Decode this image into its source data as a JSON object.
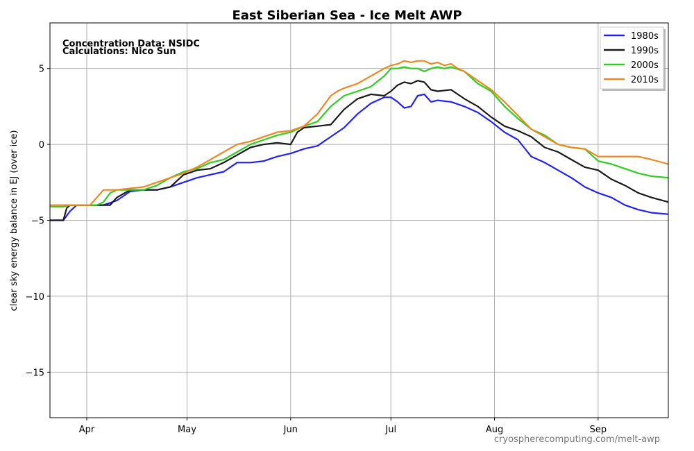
{
  "chart_data": {
    "type": "line",
    "title": "East Siberian Sea - Ice Melt AWP",
    "xlabel": "",
    "ylabel": "clear sky energy balance in EJ (over ice)",
    "annotations": [
      "Concentration Data: NSIDC",
      "Calculations: Nico Sun"
    ],
    "watermark": "cryospherecomputing.com/melt-awp",
    "x_unit": "day of year",
    "xlim": [
      80,
      265
    ],
    "ylim": [
      -18,
      8
    ],
    "x_ticks": [
      {
        "label": "Apr",
        "value": 91
      },
      {
        "label": "May",
        "value": 121
      },
      {
        "label": "Jun",
        "value": 152
      },
      {
        "label": "Jul",
        "value": 182
      },
      {
        "label": "Aug",
        "value": 213
      },
      {
        "label": "Sep",
        "value": 244
      }
    ],
    "y_ticks": [
      5,
      0,
      -5,
      -10,
      -15
    ],
    "y_tick_labels": [
      "5",
      "0",
      "−5",
      "−10",
      "−15"
    ],
    "grid": true,
    "legend_position": "top-right",
    "series": [
      {
        "name": "1980s",
        "color": "#2222ee",
        "x": [
          80,
          84,
          86,
          88,
          90,
          92,
          96,
          100,
          104,
          108,
          112,
          116,
          120,
          124,
          128,
          132,
          136,
          140,
          144,
          148,
          152,
          156,
          160,
          164,
          168,
          172,
          176,
          180,
          182,
          184,
          186,
          188,
          190,
          192,
          194,
          196,
          200,
          204,
          208,
          212,
          216,
          220,
          224,
          228,
          232,
          236,
          240,
          244,
          248,
          252,
          256,
          260,
          265
        ],
        "y": [
          -5,
          -5,
          -4.4,
          -4,
          -4,
          -4,
          -4,
          -3.7,
          -3.1,
          -3,
          -3,
          -2.8,
          -2.5,
          -2.2,
          -2,
          -1.8,
          -1.2,
          -1.2,
          -1.1,
          -0.8,
          -0.6,
          -0.3,
          -0.1,
          0.5,
          1.1,
          2,
          2.7,
          3.1,
          3.1,
          2.8,
          2.4,
          2.5,
          3.2,
          3.3,
          2.8,
          2.9,
          2.8,
          2.5,
          2.1,
          1.5,
          0.8,
          0.3,
          -0.8,
          -1.2,
          -1.7,
          -2.2,
          -2.8,
          -3.2,
          -3.5,
          -4.0,
          -4.3,
          -4.5,
          -4.6
        ]
      },
      {
        "name": "1990s",
        "color": "#1a1a1a",
        "x": [
          80,
          84,
          85,
          86,
          90,
          94,
          98,
          100,
          104,
          108,
          112,
          116,
          120,
          124,
          128,
          132,
          136,
          140,
          144,
          148,
          152,
          154,
          156,
          160,
          164,
          168,
          172,
          176,
          180,
          182,
          184,
          186,
          188,
          190,
          192,
          194,
          196,
          200,
          204,
          208,
          212,
          216,
          220,
          224,
          228,
          232,
          236,
          240,
          244,
          248,
          252,
          256,
          260,
          265
        ],
        "y": [
          -5,
          -5,
          -4.2,
          -4,
          -4,
          -4,
          -4,
          -3.5,
          -3,
          -3,
          -3,
          -2.8,
          -2,
          -1.7,
          -1.6,
          -1.2,
          -0.7,
          -0.2,
          0,
          0.1,
          0,
          0.8,
          1.1,
          1.2,
          1.3,
          2.3,
          3.0,
          3.3,
          3.2,
          3.5,
          3.9,
          4.1,
          4.0,
          4.2,
          4.1,
          3.6,
          3.5,
          3.6,
          3.0,
          2.5,
          1.8,
          1.2,
          0.9,
          0.5,
          -0.2,
          -0.5,
          -1.0,
          -1.5,
          -1.7,
          -2.3,
          -2.7,
          -3.2,
          -3.5,
          -3.8
        ]
      },
      {
        "name": "2000s",
        "color": "#33cc22",
        "x": [
          80,
          84,
          86,
          90,
          94,
          96,
          98,
          100,
          104,
          108,
          112,
          116,
          120,
          124,
          128,
          132,
          136,
          140,
          144,
          148,
          152,
          156,
          160,
          164,
          168,
          172,
          176,
          180,
          182,
          184,
          186,
          188,
          190,
          192,
          194,
          196,
          198,
          200,
          204,
          208,
          212,
          216,
          220,
          224,
          228,
          232,
          236,
          240,
          244,
          248,
          252,
          256,
          260,
          265
        ],
        "y": [
          -4.1,
          -4.1,
          -4,
          -4,
          -4,
          -3.8,
          -3.2,
          -3,
          -3,
          -3,
          -2.7,
          -2.2,
          -1.8,
          -1.6,
          -1.2,
          -1,
          -0.5,
          0,
          0.3,
          0.6,
          0.8,
          1.2,
          1.5,
          2.5,
          3.2,
          3.5,
          3.8,
          4.5,
          5.0,
          5.0,
          5.1,
          5.0,
          5.0,
          4.8,
          5.0,
          5.1,
          5.0,
          5.1,
          4.8,
          4.0,
          3.5,
          2.5,
          1.7,
          1.0,
          0.6,
          0,
          -0.2,
          -0.3,
          -1.1,
          -1.3,
          -1.6,
          -1.9,
          -2.1,
          -2.2
        ]
      },
      {
        "name": "2010s",
        "color": "#ee8822",
        "x": [
          80,
          84,
          88,
          92,
          94,
          96,
          100,
          104,
          108,
          112,
          116,
          120,
          124,
          128,
          132,
          136,
          140,
          144,
          148,
          152,
          156,
          160,
          164,
          166,
          168,
          172,
          176,
          180,
          182,
          184,
          186,
          188,
          190,
          192,
          194,
          196,
          198,
          200,
          202,
          204,
          208,
          212,
          216,
          220,
          224,
          228,
          232,
          236,
          240,
          244,
          248,
          252,
          256,
          260,
          265
        ],
        "y": [
          -4,
          -4,
          -4,
          -4,
          -3.5,
          -3,
          -3,
          -2.9,
          -2.8,
          -2.5,
          -2.2,
          -1.9,
          -1.5,
          -1,
          -0.5,
          0,
          0.2,
          0.5,
          0.8,
          0.9,
          1.2,
          2.0,
          3.2,
          3.5,
          3.7,
          4.0,
          4.5,
          5.0,
          5.2,
          5.3,
          5.5,
          5.4,
          5.5,
          5.5,
          5.3,
          5.4,
          5.2,
          5.3,
          5.0,
          4.8,
          4.2,
          3.6,
          2.8,
          1.9,
          1.0,
          0.5,
          0,
          -0.2,
          -0.3,
          -0.8,
          -0.8,
          -0.8,
          -0.8,
          -1.0,
          -1.3
        ]
      }
    ]
  }
}
